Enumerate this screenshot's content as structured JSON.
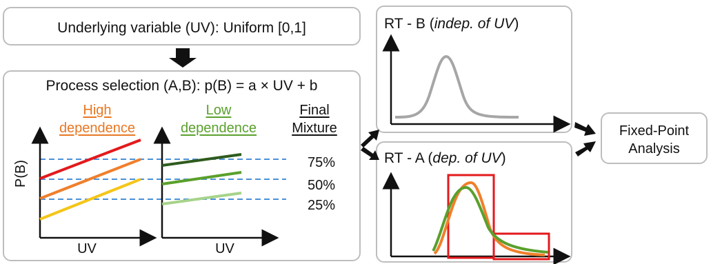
{
  "top_box": {
    "text": "Underlying variable (UV): Uniform [0,1]"
  },
  "process": {
    "title": "Process selection (A,B):  p(B) = a  × UV + b",
    "high_line1": "High",
    "high_line2": "dependence",
    "low_line1": "Low",
    "low_line2": "dependence",
    "final_line1": "Final",
    "final_line2": "Mixture",
    "y_label": "P(B)",
    "x_label_left": "UV",
    "x_label_right": "UV",
    "levels": [
      "75%",
      "50%",
      "25%"
    ]
  },
  "rt_b": {
    "prefix": "RT - B (",
    "italic": "indep. of UV",
    "suffix": ")"
  },
  "rt_a": {
    "prefix": "RT - A (",
    "italic": "dep. of UV",
    "suffix": ")"
  },
  "fixed_point": {
    "line1": "Fixed-Point",
    "line2": "Analysis"
  },
  "colors": {
    "high_header": "#e87722",
    "low_header": "#5aa02c",
    "high_lines": [
      "#e31a1c",
      "#f07f2c",
      "#f5c518"
    ],
    "low_lines": [
      "#2e5b1e",
      "#5aa02c",
      "#a6d38a"
    ],
    "dashed": "#4a90d9",
    "rt_b_curve": "#a6a6a6",
    "rt_a_curves": [
      "#f07f2c",
      "#5aa02c"
    ],
    "highlight_box": "#e31a1c",
    "arrow": "#111111",
    "box_border": "#bdbdbd"
  },
  "icons": [
    "down-arrow-icon",
    "right-arrow-icon"
  ]
}
